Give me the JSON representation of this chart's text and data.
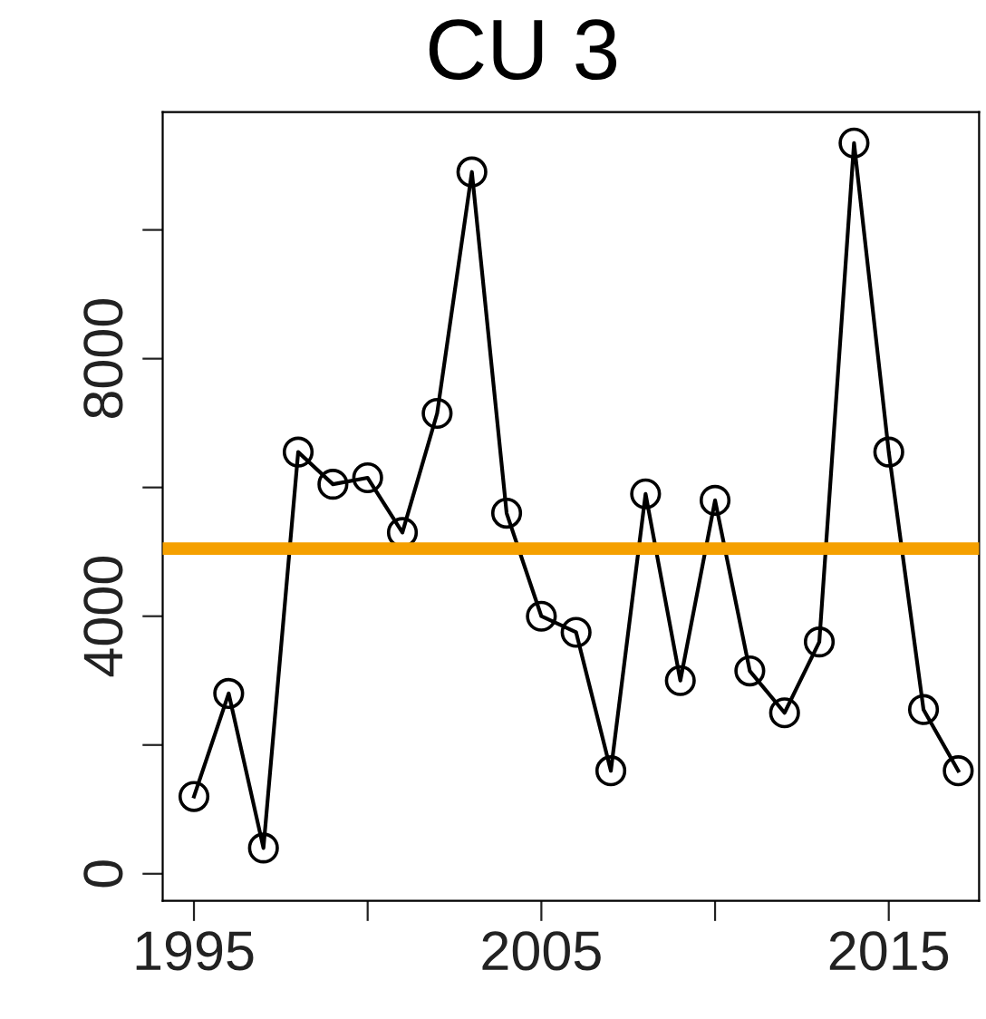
{
  "chart_data": {
    "type": "line",
    "title": "CU 3",
    "x": [
      1995,
      1996,
      1997,
      1998,
      1999,
      2000,
      2001,
      2002,
      2003,
      2004,
      2005,
      2006,
      2007,
      2008,
      2009,
      2010,
      2011,
      2012,
      2013,
      2014,
      2015,
      2016,
      2017
    ],
    "series": [
      {
        "color": "#000000",
        "values": [
          1200,
          2800,
          400,
          6550,
          6050,
          6150,
          5300,
          7150,
          10900,
          5600,
          4000,
          3750,
          1600,
          5900,
          3000,
          5800,
          3150,
          2500,
          3600,
          11350,
          6550,
          2550,
          1600
        ]
      }
    ],
    "marker": "circle",
    "xlim": [
      1994.1,
      2017.6
    ],
    "ylim": [
      -420,
      11830
    ],
    "xticks": [
      1995,
      {
        "value": 2000,
        "label": null
      },
      2005,
      {
        "value": 2010,
        "label": null
      },
      2015
    ],
    "yticks": [
      0,
      {
        "value": 2000,
        "label": null
      },
      4000,
      {
        "value": 6000,
        "label": null
      },
      8000,
      {
        "value": 10000,
        "label": null
      }
    ],
    "ref_lines": [
      {
        "axis": "y",
        "value": 5050,
        "color": "#f5a000"
      }
    ],
    "grid": false
  }
}
